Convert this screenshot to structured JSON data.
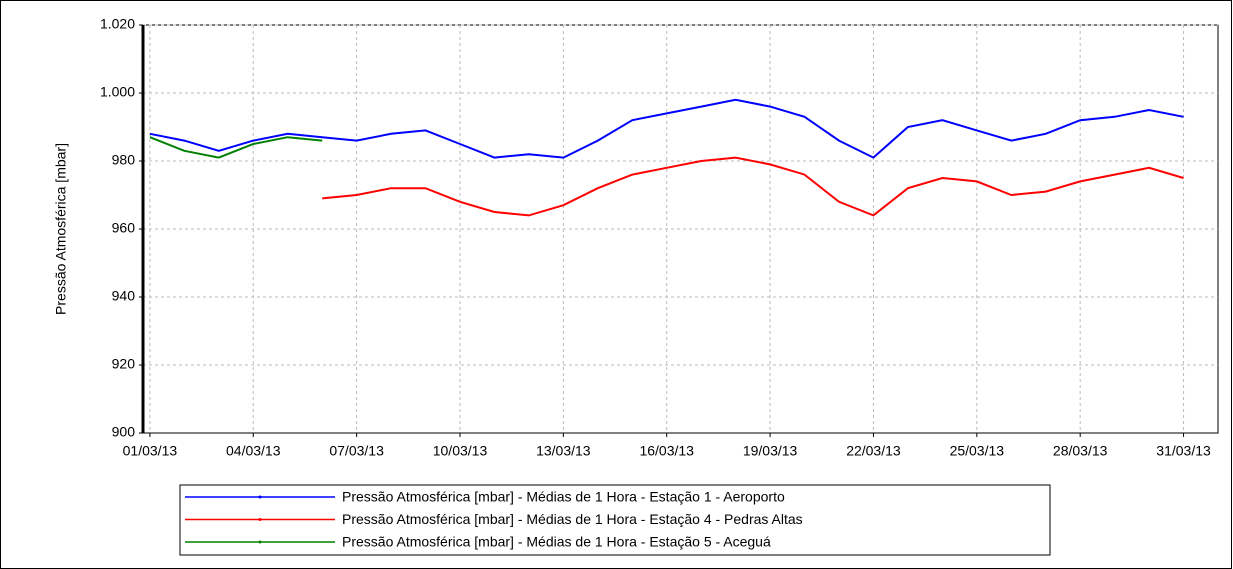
{
  "chart_data": {
    "type": "line",
    "y_label": "Pressão Atmosférica [mbar]",
    "x": [
      "01/03/13",
      "02/03/13",
      "03/03/13",
      "04/03/13",
      "05/03/13",
      "06/03/13",
      "07/03/13",
      "08/03/13",
      "09/03/13",
      "10/03/13",
      "11/03/13",
      "12/03/13",
      "13/03/13",
      "14/03/13",
      "15/03/13",
      "16/03/13",
      "17/03/13",
      "18/03/13",
      "19/03/13",
      "20/03/13",
      "21/03/13",
      "22/03/13",
      "23/03/13",
      "24/03/13",
      "25/03/13",
      "26/03/13",
      "27/03/13",
      "28/03/13",
      "29/03/13",
      "30/03/13",
      "31/03/13"
    ],
    "series": [
      {
        "name": "Pressão Atmosférica [mbar] - Médias de 1 Hora - Estação 1 - Aeroporto",
        "color": "#0000ff",
        "values": [
          988,
          986,
          983,
          986,
          988,
          987,
          986,
          988,
          989,
          985,
          981,
          982,
          981,
          986,
          992,
          994,
          996,
          998,
          996,
          993,
          986,
          981,
          990,
          992,
          989,
          986,
          988,
          992,
          993,
          995,
          993
        ]
      },
      {
        "name": "Pressão Atmosférica [mbar] - Médias de 1 Hora - Estação 4 - Pedras Altas",
        "color": "#ff0000",
        "values": [
          null,
          null,
          null,
          null,
          null,
          969,
          970,
          972,
          972,
          968,
          965,
          964,
          967,
          972,
          976,
          978,
          980,
          981,
          979,
          976,
          968,
          964,
          972,
          975,
          974,
          970,
          971,
          974,
          976,
          978,
          975
        ]
      },
      {
        "name": "Pressão Atmosférica [mbar] - Médias de 1 Hora - Estação 5 - Aceguá",
        "color": "#008000",
        "values": [
          987,
          983,
          981,
          985,
          987,
          986,
          null,
          null,
          null,
          null,
          null,
          null,
          null,
          null,
          null,
          null,
          null,
          null,
          null,
          null,
          null,
          null,
          null,
          null,
          null,
          null,
          null,
          null,
          null,
          null,
          null
        ]
      }
    ],
    "xlim": [
      "01/03/13",
      "01/04/13"
    ],
    "xticks": [
      "01/03/13",
      "04/03/13",
      "07/03/13",
      "10/03/13",
      "13/03/13",
      "16/03/13",
      "19/03/13",
      "22/03/13",
      "25/03/13",
      "28/03/13",
      "31/03/13"
    ],
    "ylim": [
      900,
      1020
    ],
    "yticks": [
      900,
      920,
      940,
      960,
      980,
      {
        "value": 1000,
        "label": "1.000"
      },
      {
        "value": 1020,
        "label": "1.020"
      }
    ],
    "grid": true,
    "legend": "bottom"
  }
}
